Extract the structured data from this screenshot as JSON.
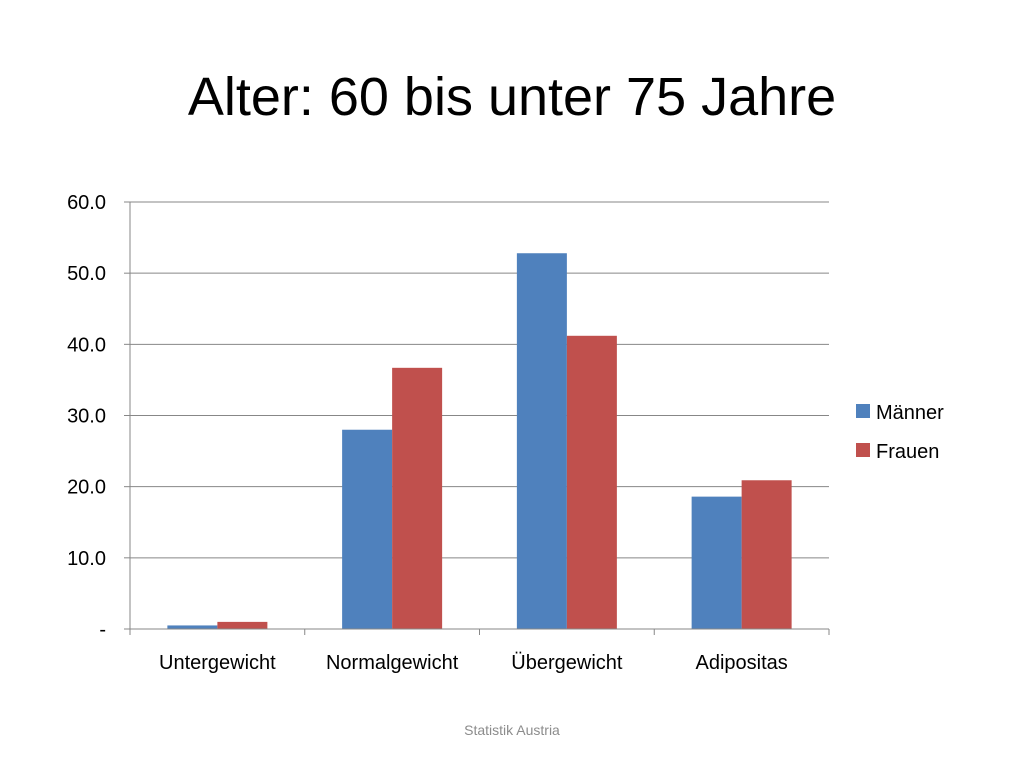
{
  "slide": {
    "title": "Alter: 60 bis unter 75 Jahre",
    "footer": "Statistik Austria"
  },
  "colors": {
    "maenner": "#4F81BD",
    "frauen": "#C0504D",
    "gridline": "#878787",
    "axis": "#878787"
  },
  "chart_data": {
    "type": "bar",
    "title": "",
    "xlabel": "",
    "ylabel": "",
    "categories": [
      "Untergewicht",
      "Normalgewicht",
      "Übergewicht",
      "Adipositas"
    ],
    "series": [
      {
        "name": "Männer",
        "values": [
          0.5,
          28.0,
          52.8,
          18.6
        ]
      },
      {
        "name": "Frauen",
        "values": [
          1.0,
          36.7,
          41.2,
          20.9
        ]
      }
    ],
    "ylim": [
      0,
      60
    ],
    "yticks": [
      {
        "value": 0,
        "label": "-"
      },
      {
        "value": 10,
        "label": "10.0"
      },
      {
        "value": 20,
        "label": "20.0"
      },
      {
        "value": 30,
        "label": "30.0"
      },
      {
        "value": 40,
        "label": "40.0"
      },
      {
        "value": 50,
        "label": "50.0"
      },
      {
        "value": 60,
        "label": "60.0"
      }
    ],
    "grid": true,
    "legend_position": "right"
  }
}
